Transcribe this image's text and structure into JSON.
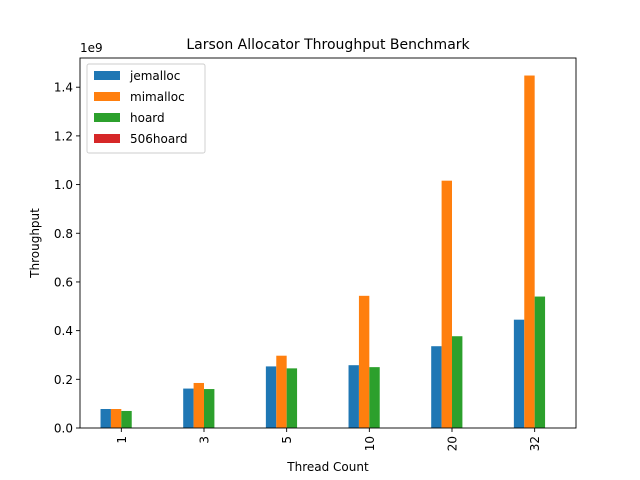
{
  "chart_data": {
    "type": "bar",
    "title": "Larson Allocator Throughput Benchmark",
    "xlabel": "Thread Count",
    "ylabel": "Throughput",
    "y_offset_text": "1e9",
    "categories": [
      "1",
      "3",
      "5",
      "10",
      "20",
      "32"
    ],
    "ylim": [
      0,
      1.52
    ],
    "yticks": [
      0.0,
      0.2,
      0.4,
      0.6,
      0.8,
      1.0,
      1.2,
      1.4
    ],
    "ytick_labels": [
      "0.0",
      "0.2",
      "0.4",
      "0.6",
      "0.8",
      "1.0",
      "1.2",
      "1.4"
    ],
    "grid": false,
    "legend_position": "top-left",
    "series": [
      {
        "name": "jemalloc",
        "color": "#1f77b4",
        "values": [
          0.078,
          0.162,
          0.253,
          0.258,
          0.336,
          0.445
        ]
      },
      {
        "name": "mimalloc",
        "color": "#ff7f0e",
        "values": [
          0.078,
          0.185,
          0.297,
          0.543,
          1.016,
          1.448
        ]
      },
      {
        "name": "hoard",
        "color": "#2ca02c",
        "values": [
          0.07,
          0.16,
          0.245,
          0.25,
          0.377,
          0.54
        ]
      },
      {
        "name": "506hoard",
        "color": "#d62728",
        "values": [
          0,
          0,
          0,
          0,
          0,
          0
        ]
      }
    ]
  }
}
